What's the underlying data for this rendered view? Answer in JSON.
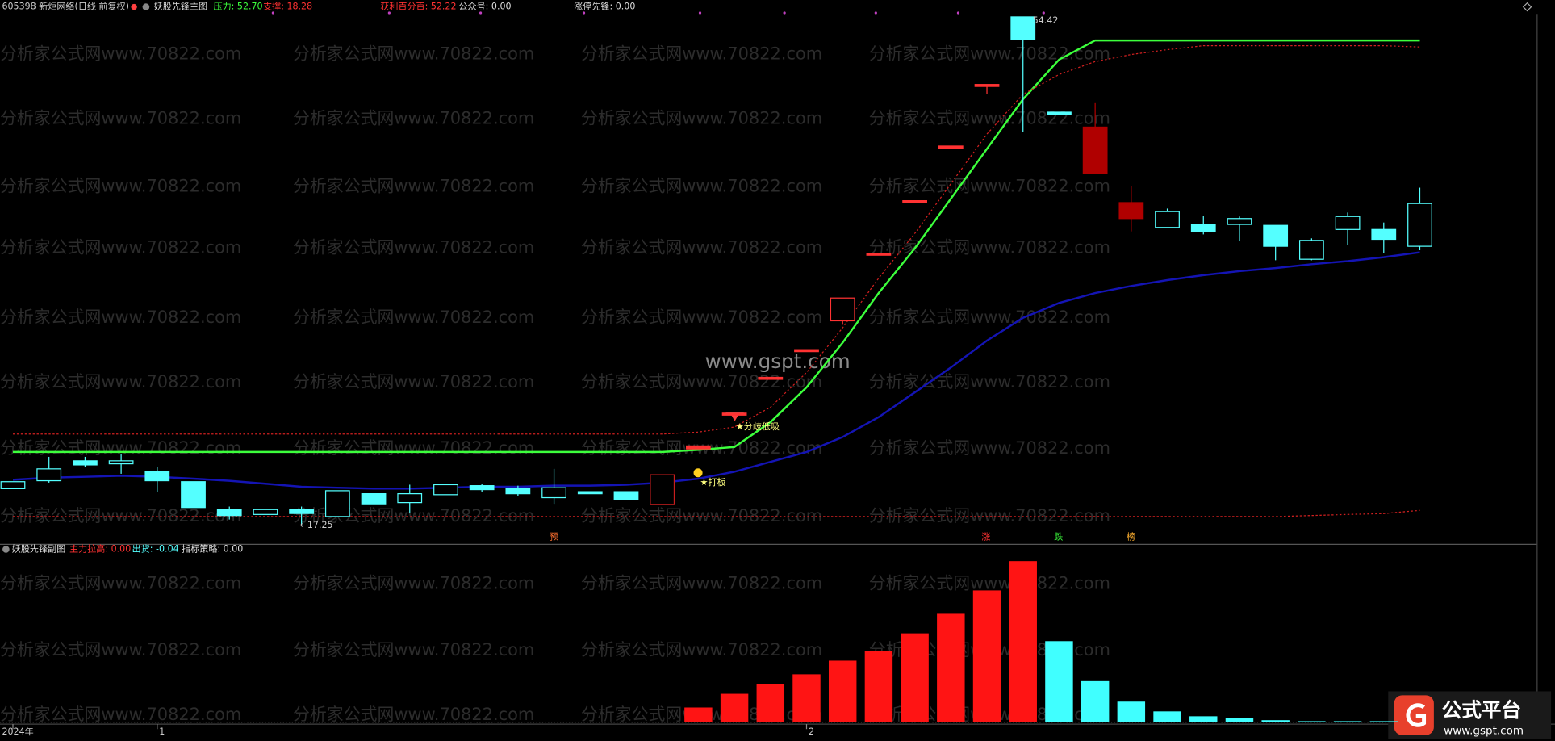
{
  "chart_data": [
    {
      "type": "candlestick",
      "symbol": "605398 新炬网络(日线 前复权)",
      "title": "妖股先锋主图",
      "legend": [
        {
          "text": "压力: 52.70",
          "color": "#3cff3c"
        },
        {
          "text": "支撑: 18.28",
          "color": "#ff3232"
        },
        {
          "text": "获利百分百: 52.22",
          "color": "#ff3232"
        },
        {
          "text": "公众号: 0.00",
          "color": "#dddddd"
        },
        {
          "text": "涨停先锋: 0.00",
          "color": "#dddddd"
        }
      ],
      "categories": [
        "2024年",
        null,
        null,
        null,
        "1",
        null,
        null,
        null,
        null,
        null,
        null,
        null,
        null,
        null,
        null,
        null,
        null,
        null,
        null,
        null,
        null,
        null,
        "2",
        null,
        null,
        null,
        null,
        null,
        null,
        null,
        null,
        null,
        null,
        null,
        null,
        null,
        null,
        null,
        null,
        null
      ],
      "open": [
        19.87,
        20.45,
        21.91,
        21.69,
        21.11,
        20.38,
        18.34,
        17.98,
        18.34,
        17.83,
        19.5,
        18.85,
        19.43,
        20.09,
        19.87,
        19.21,
        19.65,
        19.65,
        18.7,
        22.78,
        25.4,
        28.02,
        30.05,
        32.16,
        37.11,
        40.96,
        44.96,
        49.47,
        54.42,
        47.44,
        46.35,
        40.82,
        39.0,
        39.22,
        39.22,
        39.15,
        36.67,
        38.85,
        38.85,
        37.62
      ],
      "high": [
        20.38,
        22.2,
        22.2,
        22.41,
        21.47,
        20.38,
        18.56,
        18.34,
        18.56,
        19.72,
        19.5,
        20.16,
        20.16,
        20.23,
        20.09,
        21.32,
        19.65,
        19.65,
        20.89,
        23.0,
        25.4,
        28.02,
        30.05,
        33.83,
        37.11,
        40.96,
        44.96,
        49.47,
        54.42,
        47.44,
        48.16,
        42.05,
        40.38,
        39.87,
        39.8,
        39.15,
        38.2,
        40.09,
        39.36,
        41.91
      ],
      "low": [
        19.87,
        20.31,
        21.47,
        20.96,
        19.65,
        18.49,
        17.61,
        17.98,
        17.25,
        17.83,
        18.7,
        18.12,
        19.43,
        19.65,
        19.36,
        18.7,
        19.5,
        19.07,
        18.7,
        22.78,
        25.4,
        28.02,
        30.05,
        31.87,
        37.11,
        40.96,
        44.96,
        48.75,
        45.98,
        47.44,
        42.93,
        38.71,
        39.0,
        38.49,
        37.98,
        36.6,
        36.6,
        37.69,
        37.11,
        37.33
      ],
      "close": [
        20.38,
        21.32,
        21.61,
        21.91,
        20.45,
        18.49,
        17.9,
        18.34,
        18.05,
        19.72,
        18.7,
        19.5,
        20.16,
        19.8,
        19.5,
        19.94,
        19.5,
        19.07,
        20.89,
        23.0,
        25.4,
        28.02,
        30.05,
        33.83,
        37.11,
        40.96,
        44.96,
        49.47,
        52.75,
        47.44,
        42.93,
        39.65,
        40.16,
        38.71,
        39.65,
        37.62,
        38.05,
        39.8,
        38.13,
        40.75
      ],
      "colors": [
        "#54ffff",
        "#54ffff",
        "#54ffff",
        "#54ffff",
        "#54ffff",
        "#54ffff",
        "#54ffff",
        "#54ffff",
        "#54ffff",
        "#54ffff",
        "#54ffff",
        "#54ffff",
        "#54ffff",
        "#54ffff",
        "#54ffff",
        "#54ffff",
        "#54ffff",
        "#54ffff",
        "#c81e1e",
        "#ff3232",
        "#ff3232",
        "#ff3232",
        "#ff3232",
        "#ff3232",
        "#ff3232",
        "#ff3232",
        "#ff3232",
        "#ff3232",
        "#54ffff",
        "#54ffff",
        "#b00000",
        "#b00000",
        "#54ffff",
        "#54ffff",
        "#54ffff",
        "#54ffff",
        "#54ffff",
        "#54ffff",
        "#54ffff",
        "#54ffff"
      ],
      "hollow": [
        true,
        true,
        false,
        true,
        false,
        false,
        false,
        true,
        false,
        true,
        false,
        true,
        true,
        false,
        false,
        true,
        false,
        false,
        true,
        false,
        false,
        false,
        false,
        true,
        false,
        false,
        false,
        false,
        false,
        false,
        false,
        false,
        true,
        false,
        true,
        false,
        true,
        true,
        false,
        true
      ],
      "lines": [
        {
          "color": "#3cff3c",
          "dashed": false,
          "values": [
            22.56,
            22.56,
            22.56,
            22.56,
            22.56,
            22.56,
            22.56,
            22.56,
            22.56,
            22.56,
            22.56,
            22.56,
            22.56,
            22.56,
            22.56,
            22.56,
            22.56,
            22.56,
            22.56,
            22.71,
            22.92,
            24.74,
            27.29,
            30.56,
            34.2,
            37.47,
            41.11,
            44.75,
            48.38,
            51.29,
            52.7,
            52.7,
            52.7,
            52.7,
            52.7,
            52.7,
            52.7,
            52.7,
            52.7,
            52.7
          ]
        },
        {
          "color": "#1414b4",
          "dashed": false,
          "values": [
            20.52,
            20.67,
            20.74,
            20.81,
            20.74,
            20.6,
            20.45,
            20.23,
            20.01,
            19.94,
            19.87,
            19.87,
            19.94,
            20.01,
            20.01,
            20.09,
            20.09,
            20.16,
            20.31,
            20.6,
            21.11,
            21.83,
            22.56,
            23.65,
            25.11,
            26.92,
            28.74,
            30.71,
            32.38,
            33.47,
            34.2,
            34.71,
            35.14,
            35.51,
            35.8,
            36.02,
            36.31,
            36.53,
            36.82,
            37.18
          ]
        },
        {
          "color": "#d22020",
          "dashed": true,
          "values": [
            23.87,
            23.87,
            23.87,
            23.87,
            23.87,
            23.87,
            23.87,
            23.87,
            23.87,
            23.87,
            23.87,
            23.87,
            23.87,
            23.87,
            23.87,
            23.87,
            23.87,
            23.87,
            23.87,
            24.01,
            24.38,
            25.83,
            28.38,
            31.65,
            35.29,
            38.56,
            42.2,
            45.84,
            48.75,
            50.2,
            51.15,
            51.66,
            52.02,
            52.31,
            52.31,
            52.31,
            52.31,
            52.31,
            52.31,
            52.22
          ]
        },
        {
          "color": "#d22020",
          "dashed": true,
          "values": [
            17.83,
            17.83,
            17.83,
            17.83,
            17.83,
            17.83,
            17.83,
            17.83,
            17.83,
            17.83,
            17.83,
            17.83,
            17.83,
            17.83,
            17.83,
            17.83,
            17.83,
            17.83,
            17.83,
            17.83,
            17.83,
            17.83,
            17.83,
            17.83,
            17.83,
            17.83,
            17.83,
            17.83,
            17.83,
            17.83,
            17.83,
            17.83,
            17.83,
            17.83,
            17.83,
            17.83,
            17.9,
            17.98,
            18.05,
            18.28
          ]
        }
      ],
      "ylim": [
        16.01,
        54.93
      ],
      "high_label": "54.42",
      "low_label": "←17.25",
      "signals": [
        {
          "text": "★分歧低吸",
          "color": "#ffff80"
        },
        {
          "text": "★打板",
          "color": "#ffff80"
        }
      ],
      "markers": [
        {
          "text": "预",
          "color": "#ff7030"
        },
        {
          "text": "涨",
          "color": "#ff3232"
        },
        {
          "text": "跌",
          "color": "#3cff3c"
        },
        {
          "text": "榜",
          "color": "#ffb030"
        }
      ],
      "watermark": "www.gspt.com"
    },
    {
      "type": "bar",
      "title": "妖股先锋副图",
      "legend": [
        {
          "text": "主力拉高: 0.00",
          "color": "#ff3232"
        },
        {
          "text": "出货: -0.04",
          "color": "#54ffff"
        },
        {
          "text": "指标策略: 0.00",
          "color": "#dddddd"
        }
      ],
      "values": [
        null,
        null,
        null,
        null,
        null,
        null,
        null,
        null,
        null,
        null,
        null,
        null,
        null,
        null,
        null,
        null,
        null,
        null,
        null,
        15,
        29,
        39,
        49,
        63,
        73,
        91,
        111,
        135,
        165,
        83,
        42,
        21,
        11,
        6,
        4,
        2,
        1,
        1,
        1,
        null
      ],
      "colors": [
        null,
        null,
        null,
        null,
        null,
        null,
        null,
        null,
        null,
        null,
        null,
        null,
        null,
        null,
        null,
        null,
        null,
        null,
        null,
        "#ff1414",
        "#ff1414",
        "#ff1414",
        "#ff1414",
        "#ff1414",
        "#ff1414",
        "#ff1414",
        "#ff1414",
        "#ff1414",
        "#ff1414",
        "#40ffff",
        "#40ffff",
        "#40ffff",
        "#40ffff",
        "#40ffff",
        "#40ffff",
        "#40ffff",
        "#40ffff",
        "#40ffff",
        "#40ffff",
        null
      ],
      "ylim": [
        0,
        170
      ]
    }
  ],
  "watermark": "分析家公式网www.70822.com",
  "logo": {
    "name": "公式平台",
    "url": "www.gspt.com"
  }
}
